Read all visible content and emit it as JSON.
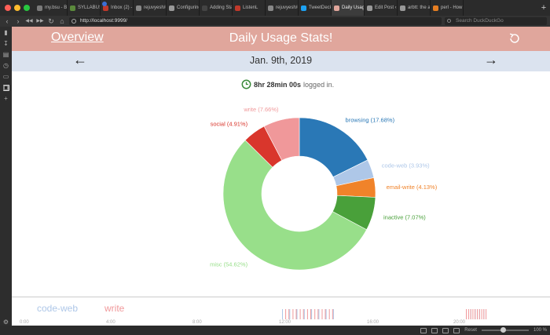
{
  "browser": {
    "tabs": [
      {
        "label": "my.bsu - Bal",
        "fav": "#7a7a7a"
      },
      {
        "label": "SYLLABUS_(",
        "fav": "#5b8a3c"
      },
      {
        "label": "Inbox (2) - b",
        "fav": "#c0392b",
        "badge": true
      },
      {
        "label": "rejuvyesh/u",
        "fav": "#888888"
      },
      {
        "label": "Configuring",
        "fav": "#999999"
      },
      {
        "label": "Adding Stat",
        "fav": "#444444"
      },
      {
        "label": "ListenL",
        "fav": "#c0392b"
      },
      {
        "label": "rejuvyesh/u",
        "fav": "#888888"
      },
      {
        "label": "TweetDeck",
        "fav": "#1da1f2"
      },
      {
        "label": "Daily Usage",
        "fav": "#e0a69c",
        "active": true
      },
      {
        "label": "Edit Post ‹ r",
        "fav": "#999999"
      },
      {
        "label": "arbtt: the au",
        "fav": "#999999"
      },
      {
        "label": "perl - How d",
        "fav": "#e67e22"
      }
    ],
    "url": "http://localhost:9999/",
    "search_placeholder": "Search DuckDuckGo",
    "zoom": "100 %",
    "reset": "Reset"
  },
  "page": {
    "overview_link": "Overview",
    "title": "Daily Usage Stats!",
    "date": "Jan. 9th, 2019",
    "prev_arrow": "←",
    "next_arrow": "→",
    "total_value": "8hr 28min 00s",
    "total_suffix": "logged in."
  },
  "chart_data": {
    "type": "pie",
    "donut": true,
    "slices": [
      {
        "label": "browsing (17.68%)",
        "value": 17.68,
        "color": "#2a78b6"
      },
      {
        "label": "code-web (3.93%)",
        "value": 3.93,
        "color": "#aec7e8"
      },
      {
        "label": "email-write (4.13%)",
        "value": 4.13,
        "color": "#f0832a"
      },
      {
        "label": "inactive (7.07%)",
        "value": 7.07,
        "color": "#49a03a"
      },
      {
        "label": "misc (54.62%)",
        "value": 54.62,
        "color": "#98df8a"
      },
      {
        "label": "social (4.91%)",
        "value": 4.91,
        "color": "#d9362c"
      },
      {
        "label": "write (7.66%)",
        "value": 7.66,
        "color": "#f0989a"
      }
    ]
  },
  "timeline": {
    "legend": [
      {
        "label": "code-web",
        "color": "#aec7e8"
      },
      {
        "label": "write",
        "color": "#f0989a"
      }
    ],
    "ticks": [
      "0:00",
      "4:00",
      "8:00",
      "12:00",
      "16:00",
      "20:00"
    ]
  }
}
